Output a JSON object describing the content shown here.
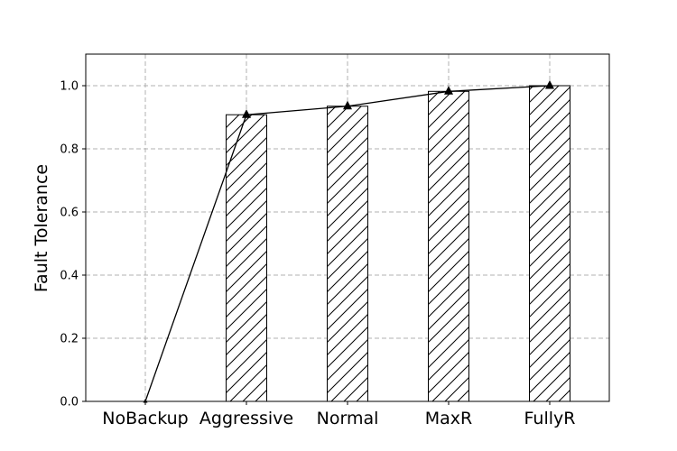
{
  "chart_data": {
    "type": "bar",
    "title": "",
    "xlabel": "",
    "ylabel": "Fault Tolerance",
    "categories": [
      "NoBackup",
      "Aggressive",
      "Normal",
      "MaxR",
      "FullyR"
    ],
    "values": [
      0.0,
      0.908,
      0.935,
      0.982,
      1.0
    ],
    "line_values": [
      0.0,
      0.908,
      0.935,
      0.982,
      1.0
    ],
    "ylim": [
      0,
      1.1
    ],
    "yticks": [
      "0.0",
      "0.2",
      "0.4",
      "0.6",
      "0.8",
      "1.0"
    ],
    "grid": true,
    "bar_fill": "#ffffff",
    "bar_hatch": "diagonal",
    "line_color": "#000000",
    "marker": "triangle",
    "grid_color": "#b0b0b0"
  }
}
